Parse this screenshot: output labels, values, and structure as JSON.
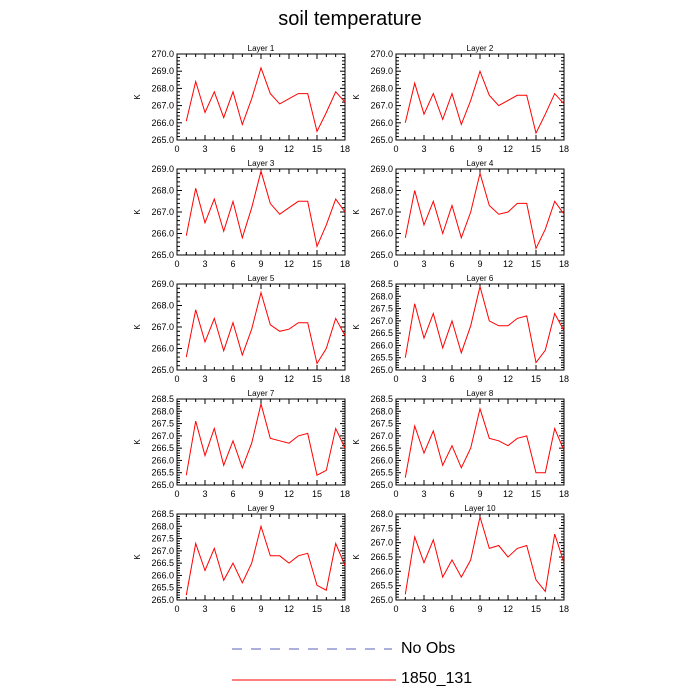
{
  "chart_data": {
    "type": "line",
    "title": "soil temperature",
    "x_ticks": [
      0,
      3,
      6,
      9,
      12,
      15,
      18
    ],
    "xlim": [
      0,
      18
    ],
    "x": [
      1,
      2,
      3,
      4,
      5,
      6,
      7,
      8,
      9,
      10,
      11,
      12,
      13,
      14,
      15,
      16,
      17,
      18
    ],
    "legend": [
      {
        "name": "No Obs",
        "color": "#5b5fb8",
        "style": "dashed"
      },
      {
        "name": "1850_131",
        "color": "#ff0000",
        "style": "solid"
      }
    ],
    "panels": [
      {
        "title": "Layer 1",
        "ylabel": "K",
        "ylim": [
          265.0,
          270.0
        ],
        "yticks": [
          "265.0",
          "266.0",
          "267.0",
          "268.0",
          "269.0",
          "270.0"
        ],
        "values": [
          266.1,
          268.4,
          266.6,
          267.8,
          266.3,
          267.8,
          265.9,
          267.4,
          269.2,
          267.7,
          267.1,
          267.4,
          267.7,
          267.7,
          265.5,
          266.6,
          267.8,
          267.2
        ]
      },
      {
        "title": "Layer 2",
        "ylabel": "K",
        "ylim": [
          265.0,
          270.0
        ],
        "yticks": [
          "265.0",
          "266.0",
          "267.0",
          "268.0",
          "269.0",
          "270.0"
        ],
        "values": [
          266.0,
          268.3,
          266.5,
          267.7,
          266.2,
          267.7,
          265.9,
          267.3,
          269.0,
          267.6,
          267.0,
          267.3,
          267.6,
          267.6,
          265.4,
          266.5,
          267.7,
          267.1
        ]
      },
      {
        "title": "Layer 3",
        "ylabel": "K",
        "ylim": [
          265.0,
          269.0
        ],
        "yticks": [
          "265.0",
          "266.0",
          "267.0",
          "268.0",
          "269.0"
        ],
        "values": [
          265.9,
          268.1,
          266.5,
          267.6,
          266.1,
          267.5,
          265.8,
          267.2,
          268.9,
          267.4,
          266.9,
          267.2,
          267.5,
          267.5,
          265.4,
          266.4,
          267.6,
          267.0
        ]
      },
      {
        "title": "Layer 4",
        "ylabel": "K",
        "ylim": [
          265.0,
          269.0
        ],
        "yticks": [
          "265.0",
          "266.0",
          "267.0",
          "268.0",
          "269.0"
        ],
        "values": [
          265.8,
          268.0,
          266.4,
          267.5,
          266.0,
          267.3,
          265.8,
          267.0,
          268.8,
          267.3,
          266.9,
          267.0,
          267.4,
          267.4,
          265.3,
          266.2,
          267.5,
          266.9
        ]
      },
      {
        "title": "Layer 5",
        "ylabel": "K",
        "ylim": [
          265.0,
          269.0
        ],
        "yticks": [
          "265.0",
          "266.0",
          "267.0",
          "268.0",
          "269.0"
        ],
        "values": [
          265.6,
          267.8,
          266.3,
          267.4,
          265.9,
          267.2,
          265.7,
          266.9,
          268.6,
          267.1,
          266.8,
          266.9,
          267.2,
          267.2,
          265.3,
          266.0,
          267.4,
          266.6
        ]
      },
      {
        "title": "Layer 6",
        "ylabel": "K",
        "ylim": [
          265.0,
          268.5
        ],
        "yticks": [
          "265.0",
          "265.5",
          "266.0",
          "266.5",
          "267.0",
          "267.5",
          "268.0",
          "268.5"
        ],
        "values": [
          265.5,
          267.7,
          266.3,
          267.3,
          265.9,
          267.0,
          265.7,
          266.8,
          268.4,
          267.0,
          266.8,
          266.8,
          267.1,
          267.2,
          265.3,
          265.8,
          267.3,
          266.6
        ]
      },
      {
        "title": "Layer 7",
        "ylabel": "K",
        "ylim": [
          265.0,
          268.5
        ],
        "yticks": [
          "265.0",
          "265.5",
          "266.0",
          "266.5",
          "267.0",
          "267.5",
          "268.0",
          "268.5"
        ],
        "values": [
          265.4,
          267.6,
          266.2,
          267.3,
          265.8,
          266.8,
          265.7,
          266.7,
          268.3,
          266.9,
          266.8,
          266.7,
          267.0,
          267.1,
          265.4,
          265.6,
          267.3,
          266.5
        ]
      },
      {
        "title": "Layer 8",
        "ylabel": "K",
        "ylim": [
          265.0,
          268.5
        ],
        "yticks": [
          "265.0",
          "265.5",
          "266.0",
          "266.5",
          "267.0",
          "267.5",
          "268.0",
          "268.5"
        ],
        "values": [
          265.3,
          267.4,
          266.3,
          267.2,
          265.8,
          266.6,
          265.7,
          266.5,
          268.1,
          266.9,
          266.8,
          266.6,
          266.9,
          267.0,
          265.5,
          265.5,
          267.3,
          266.4
        ]
      },
      {
        "title": "Layer 9",
        "ylabel": "K",
        "ylim": [
          265.0,
          268.5
        ],
        "yticks": [
          "265.0",
          "265.5",
          "266.0",
          "266.5",
          "267.0",
          "267.5",
          "268.0",
          "268.5"
        ],
        "values": [
          265.2,
          267.3,
          266.2,
          267.1,
          265.8,
          266.5,
          265.7,
          266.5,
          268.0,
          266.8,
          266.8,
          266.5,
          266.8,
          266.9,
          265.6,
          265.4,
          267.3,
          266.4
        ]
      },
      {
        "title": "Layer 10",
        "ylabel": "K",
        "ylim": [
          265.0,
          268.0
        ],
        "yticks": [
          "265.0",
          "265.5",
          "266.0",
          "266.5",
          "267.0",
          "267.5",
          "268.0"
        ],
        "values": [
          265.2,
          267.2,
          266.3,
          267.1,
          265.8,
          266.4,
          265.8,
          266.4,
          267.9,
          266.8,
          266.9,
          266.5,
          266.8,
          266.9,
          265.7,
          265.3,
          267.3,
          266.3
        ]
      }
    ]
  }
}
